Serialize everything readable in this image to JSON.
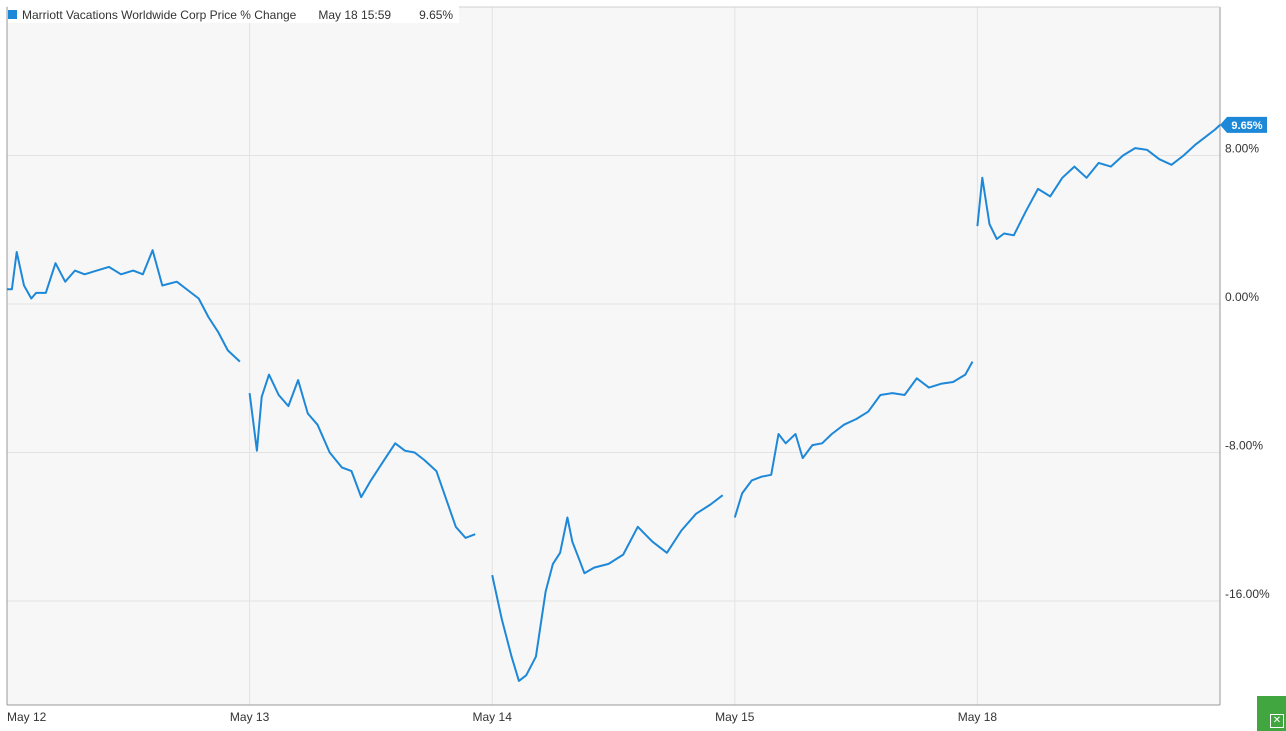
{
  "legend": {
    "series_name": "Marriott Vacations Worldwide Corp Price % Change",
    "date": "May 18 15:59",
    "value": "9.65%"
  },
  "colors": {
    "series": "#1e88d8",
    "grid": "#e3e3e3",
    "plot_bg": "#f7f7f7",
    "axis_text": "#333333"
  },
  "icons": {
    "corner": "close-icon"
  },
  "chart_data": {
    "type": "line",
    "title": "",
    "xlabel": "",
    "ylabel": "",
    "x_tick_labels": [
      "May 12",
      "May 13",
      "May 14",
      "May 15",
      "May 18"
    ],
    "y_tick_values": [
      8,
      0,
      -8,
      -16
    ],
    "y_tick_labels": [
      "8.00%",
      "0.00%",
      "-8.00%",
      "-16.00%"
    ],
    "ylim": [
      -21.6,
      16
    ],
    "x_range": [
      0,
      5
    ],
    "grid": true,
    "y_axis_position": "right",
    "last_value_label": "9.65%",
    "series": [
      {
        "name": "Marriott Vacations Worldwide Corp Price % Change",
        "segments": [
          [
            [
              0,
              0.8
            ],
            [
              0.02,
              0.8
            ],
            [
              0.04,
              2.8
            ],
            [
              0.07,
              1
            ],
            [
              0.1,
              0.3
            ],
            [
              0.12,
              0.6
            ],
            [
              0.16,
              0.6
            ],
            [
              0.2,
              2.2
            ],
            [
              0.24,
              1.2
            ],
            [
              0.28,
              1.8
            ],
            [
              0.32,
              1.6
            ],
            [
              0.37,
              1.8
            ],
            [
              0.42,
              2
            ],
            [
              0.47,
              1.6
            ],
            [
              0.52,
              1.8
            ],
            [
              0.56,
              1.6
            ],
            [
              0.6,
              2.9
            ],
            [
              0.64,
              1
            ],
            [
              0.7,
              1.2
            ],
            [
              0.75,
              0.7
            ],
            [
              0.79,
              0.3
            ],
            [
              0.83,
              -0.7
            ],
            [
              0.87,
              -1.5
            ],
            [
              0.91,
              -2.5
            ],
            [
              0.96,
              -3.1
            ]
          ],
          [
            [
              1.0,
              -4.8
            ],
            [
              1.03,
              -7.9
            ],
            [
              1.05,
              -5
            ],
            [
              1.08,
              -3.8
            ],
            [
              1.12,
              -4.9
            ],
            [
              1.16,
              -5.5
            ],
            [
              1.2,
              -4.1
            ],
            [
              1.24,
              -5.9
            ],
            [
              1.28,
              -6.5
            ],
            [
              1.33,
              -8
            ],
            [
              1.38,
              -8.8
            ],
            [
              1.42,
              -9
            ],
            [
              1.46,
              -10.4
            ],
            [
              1.5,
              -9.5
            ],
            [
              1.55,
              -8.5
            ],
            [
              1.6,
              -7.5
            ],
            [
              1.64,
              -7.9
            ],
            [
              1.68,
              -8
            ],
            [
              1.72,
              -8.4
            ],
            [
              1.77,
              -9
            ],
            [
              1.81,
              -10.5
            ],
            [
              1.85,
              -12
            ],
            [
              1.89,
              -12.6
            ],
            [
              1.93,
              -12.4
            ]
          ],
          [
            [
              2.0,
              -14.6
            ],
            [
              2.04,
              -17
            ],
            [
              2.08,
              -19
            ],
            [
              2.11,
              -20.3
            ],
            [
              2.14,
              -20
            ],
            [
              2.18,
              -19
            ],
            [
              2.22,
              -15.5
            ],
            [
              2.25,
              -14
            ],
            [
              2.28,
              -13.4
            ],
            [
              2.31,
              -11.5
            ],
            [
              2.33,
              -12.8
            ],
            [
              2.36,
              -13.8
            ],
            [
              2.38,
              -14.5
            ],
            [
              2.42,
              -14.2
            ],
            [
              2.48,
              -14
            ],
            [
              2.54,
              -13.5
            ],
            [
              2.6,
              -12
            ],
            [
              2.66,
              -12.8
            ],
            [
              2.72,
              -13.4
            ],
            [
              2.78,
              -12.2
            ],
            [
              2.84,
              -11.3
            ],
            [
              2.9,
              -10.8
            ],
            [
              2.95,
              -10.3
            ]
          ],
          [
            [
              3.0,
              -11.5
            ],
            [
              3.03,
              -10.2
            ],
            [
              3.07,
              -9.5
            ],
            [
              3.11,
              -9.3
            ],
            [
              3.15,
              -9.2
            ],
            [
              3.18,
              -7
            ],
            [
              3.21,
              -7.5
            ],
            [
              3.25,
              -7
            ],
            [
              3.28,
              -8.3
            ],
            [
              3.32,
              -7.6
            ],
            [
              3.36,
              -7.5
            ],
            [
              3.4,
              -7
            ],
            [
              3.45,
              -6.5
            ],
            [
              3.5,
              -6.2
            ],
            [
              3.55,
              -5.8
            ],
            [
              3.6,
              -4.9
            ],
            [
              3.65,
              -4.8
            ],
            [
              3.7,
              -4.9
            ],
            [
              3.75,
              -4
            ],
            [
              3.8,
              -4.5
            ],
            [
              3.85,
              -4.3
            ],
            [
              3.9,
              -4.2
            ],
            [
              3.95,
              -3.8
            ],
            [
              3.98,
              -3.1
            ]
          ],
          [
            [
              4.0,
              4.2
            ],
            [
              4.02,
              6.8
            ],
            [
              4.05,
              4.3
            ],
            [
              4.08,
              3.5
            ],
            [
              4.11,
              3.8
            ],
            [
              4.15,
              3.7
            ],
            [
              4.2,
              5
            ],
            [
              4.25,
              6.2
            ],
            [
              4.3,
              5.8
            ],
            [
              4.35,
              6.8
            ],
            [
              4.4,
              7.4
            ],
            [
              4.45,
              6.8
            ],
            [
              4.5,
              7.6
            ],
            [
              4.55,
              7.4
            ],
            [
              4.6,
              8
            ],
            [
              4.65,
              8.4
            ],
            [
              4.7,
              8.3
            ],
            [
              4.75,
              7.8
            ],
            [
              4.8,
              7.5
            ],
            [
              4.85,
              8
            ],
            [
              4.9,
              8.6
            ],
            [
              4.95,
              9.1
            ],
            [
              4.98,
              9.4
            ],
            [
              5.0,
              9.65
            ]
          ]
        ]
      }
    ]
  }
}
